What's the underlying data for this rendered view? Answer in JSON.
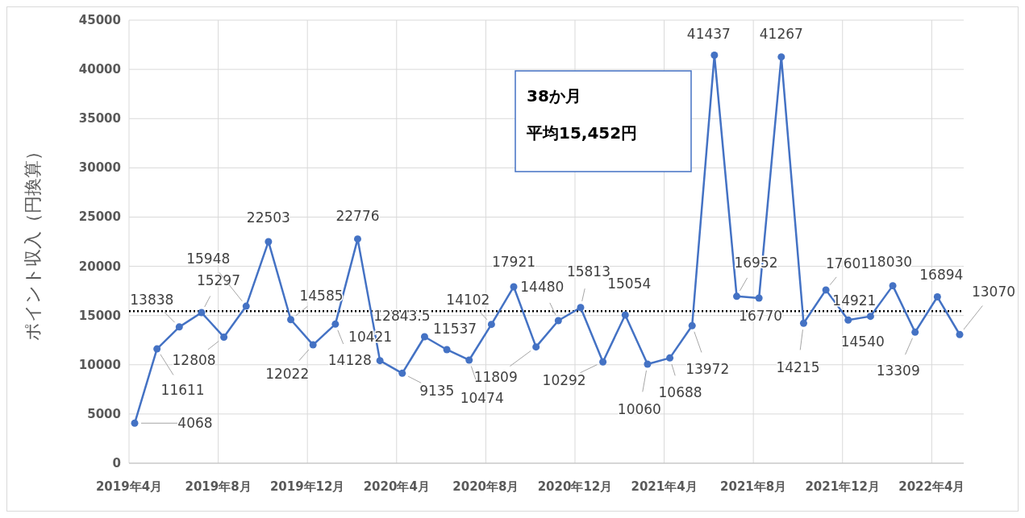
{
  "chart_data": {
    "type": "line",
    "ylabel": "ポイント収入（円換算）",
    "categories": [
      "2019年4月",
      null,
      null,
      null,
      "2019年8月",
      null,
      null,
      null,
      "2019年12月",
      null,
      null,
      null,
      "2020年4月",
      null,
      null,
      null,
      "2020年8月",
      null,
      null,
      null,
      "2020年12月",
      null,
      null,
      null,
      "2021年4月",
      null,
      null,
      null,
      "2021年8月",
      null,
      null,
      null,
      "2021年12月",
      null,
      null,
      null,
      "2022年4月",
      null
    ],
    "series": [
      {
        "color": "#4472c4",
        "values": [
          4068,
          11611,
          13838,
          15297,
          12808,
          15948,
          22503,
          14585,
          12022,
          14128,
          22776,
          10421,
          9135,
          12843.5,
          11537,
          10474,
          14102,
          17921,
          11809,
          14480,
          15813,
          10292,
          15054,
          10060,
          10688,
          13972,
          41437,
          16952,
          16770,
          41267,
          14215,
          17601,
          14540,
          14921,
          18030,
          13309,
          16894,
          13070
        ]
      }
    ],
    "ylim": [
      0,
      45000
    ],
    "yticks": [
      0,
      5000,
      10000,
      15000,
      20000,
      25000,
      30000,
      35000,
      40000,
      45000
    ],
    "grid": true,
    "marker": "circle",
    "line_style": "solid",
    "data_labels": true,
    "ref_lines": [
      {
        "axis": "y",
        "value": 15452,
        "color": "#000000",
        "line_style": "dotted"
      }
    ],
    "annotations": [
      "38か月",
      "平均15,452円"
    ]
  }
}
